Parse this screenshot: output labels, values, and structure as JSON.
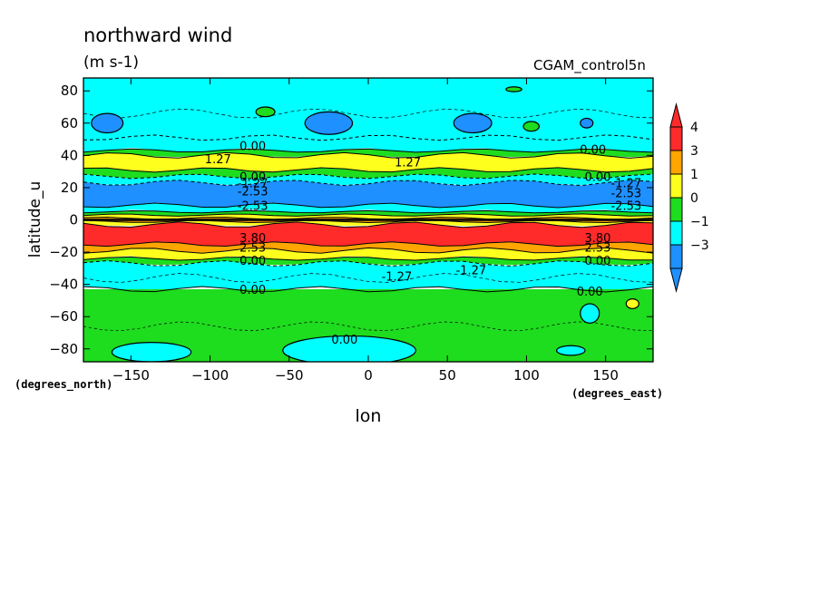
{
  "chart_data": {
    "type": "heatmap",
    "title": "northward wind",
    "units": "(m s-1)",
    "run_label": "CGAM_control5n",
    "xlabel": "lon",
    "ylabel": "latitude_u",
    "y_units_label": "(degrees_north)",
    "x_units_label": "(degrees_east)",
    "xlim": [
      -180,
      180
    ],
    "ylim": [
      -88,
      88
    ],
    "x_ticks": [
      -150,
      -100,
      -50,
      0,
      50,
      100,
      150
    ],
    "y_ticks": [
      80,
      60,
      40,
      20,
      0,
      -20,
      -40,
      -60,
      -80
    ],
    "colorbar": {
      "labels": [
        "4",
        "3",
        "1",
        "0",
        "-1",
        "-3"
      ],
      "bands": [
        {
          "lo": 3,
          "hi": 4,
          "color": "#ff2a2a"
        },
        {
          "lo": 1,
          "hi": 3,
          "color": "#ffa500"
        },
        {
          "lo": 0,
          "hi": 1,
          "color": "#ffff1e"
        },
        {
          "lo": -1,
          "hi": 0,
          "color": "#1edc1e"
        },
        {
          "lo": -3,
          "hi": -1,
          "color": "#00ffff"
        },
        {
          "lo": -4,
          "hi": -3,
          "color": "#1e90ff"
        }
      ],
      "extend_high_color": "#ff2a2a",
      "extend_low_color": "#1e90ff"
    },
    "zonal_bands": [
      {
        "lat_top": 88,
        "lat_bottom": 51,
        "color": "#00ffff"
      },
      {
        "lat_top": 51,
        "lat_bottom": 43,
        "color": "#00ffff"
      },
      {
        "lat_top": 43,
        "lat_bottom": 40,
        "color": "#1edc1e"
      },
      {
        "lat_top": 40,
        "lat_bottom": 31,
        "color": "#ffff1e"
      },
      {
        "lat_top": 31,
        "lat_bottom": 27,
        "color": "#1edc1e"
      },
      {
        "lat_top": 27,
        "lat_bottom": 23,
        "color": "#00ffff"
      },
      {
        "lat_top": 23,
        "lat_bottom": 9,
        "color": "#1e90ff"
      },
      {
        "lat_top": 9,
        "lat_bottom": 5,
        "color": "#00ffff"
      },
      {
        "lat_top": 5,
        "lat_bottom": 3,
        "color": "#1edc1e"
      },
      {
        "lat_top": 3,
        "lat_bottom": 1,
        "color": "#ffff1e"
      },
      {
        "lat_top": 1,
        "lat_bottom": -1,
        "color": "#ffa500"
      },
      {
        "lat_top": -1,
        "lat_bottom": -3,
        "color": "#ffff1e"
      },
      {
        "lat_top": -3,
        "lat_bottom": -15,
        "color": "#ff2a2a"
      },
      {
        "lat_top": -15,
        "lat_bottom": -19,
        "color": "#ffa500"
      },
      {
        "lat_top": -19,
        "lat_bottom": -24,
        "color": "#ffff1e"
      },
      {
        "lat_top": -24,
        "lat_bottom": -27,
        "color": "#1edc1e"
      },
      {
        "lat_top": -27,
        "lat_bottom": -43,
        "color": "#00ffff"
      },
      {
        "lat_top": -43,
        "lat_bottom": -88,
        "color": "#1edc1e"
      }
    ],
    "patches": [
      {
        "lon": -165,
        "lat": 60,
        "rlon": 10,
        "rlat": 6,
        "color": "#1e90ff"
      },
      {
        "lon": -25,
        "lat": 60,
        "rlon": 15,
        "rlat": 7,
        "color": "#1e90ff"
      },
      {
        "lon": 66,
        "lat": 60,
        "rlon": 12,
        "rlat": 6,
        "color": "#1e90ff"
      },
      {
        "lon": 138,
        "lat": 60,
        "rlon": 4,
        "rlat": 3,
        "color": "#1e90ff"
      },
      {
        "lon": -65,
        "lat": 67,
        "rlon": 6,
        "rlat": 3,
        "color": "#1edc1e"
      },
      {
        "lon": 103,
        "lat": 58,
        "rlon": 5,
        "rlat": 3,
        "color": "#1edc1e"
      },
      {
        "lon": 92,
        "lat": 81,
        "rlon": 5,
        "rlat": 1.5,
        "color": "#1edc1e"
      },
      {
        "lon": -137,
        "lat": -82,
        "rlon": 25,
        "rlat": 6,
        "color": "#00ffff"
      },
      {
        "lon": 140,
        "lat": -58,
        "rlon": 6,
        "rlat": 6,
        "color": "#00ffff"
      },
      {
        "lon": 128,
        "lat": -81,
        "rlon": 9,
        "rlat": 3,
        "color": "#00ffff"
      },
      {
        "lon": 167,
        "lat": -52,
        "rlon": 4,
        "rlat": 3,
        "color": "#ffff1e"
      },
      {
        "lon": -12,
        "lat": -81,
        "rlon": 42,
        "rlat": 9,
        "color": "#00ffff"
      }
    ],
    "contour_labels": [
      {
        "text": "0.00",
        "lon": -73,
        "lat": 46
      },
      {
        "text": "1.27",
        "lon": -95,
        "lat": 38
      },
      {
        "text": "1.27",
        "lon": 25,
        "lat": 36
      },
      {
        "text": "0.00",
        "lon": 142,
        "lat": 44
      },
      {
        "text": "0.00",
        "lon": -73,
        "lat": 27
      },
      {
        "text": "-1.27",
        "lon": -73,
        "lat": 23
      },
      {
        "text": "-2.53",
        "lon": -73,
        "lat": 18
      },
      {
        "text": "-2.53",
        "lon": -73,
        "lat": 9
      },
      {
        "text": "0.00",
        "lon": 145,
        "lat": 27
      },
      {
        "text": "-1.27",
        "lon": 163,
        "lat": 23
      },
      {
        "text": "-2.53",
        "lon": 163,
        "lat": 17
      },
      {
        "text": "-2.53",
        "lon": 163,
        "lat": 9
      },
      {
        "text": "3.80",
        "lon": -73,
        "lat": -11
      },
      {
        "text": "2.53",
        "lon": -73,
        "lat": -17
      },
      {
        "text": "0.00",
        "lon": -73,
        "lat": -25
      },
      {
        "text": "3.80",
        "lon": 145,
        "lat": -11
      },
      {
        "text": "2.53",
        "lon": 145,
        "lat": -17
      },
      {
        "text": "0.00",
        "lon": 145,
        "lat": -25
      },
      {
        "text": "-1.27",
        "lon": 18,
        "lat": -35
      },
      {
        "text": "-1.27",
        "lon": 65,
        "lat": -31
      },
      {
        "text": "0.00",
        "lon": -73,
        "lat": -43
      },
      {
        "text": "0.00",
        "lon": 140,
        "lat": -44
      },
      {
        "text": "0.00",
        "lon": -15,
        "lat": -74
      }
    ]
  }
}
